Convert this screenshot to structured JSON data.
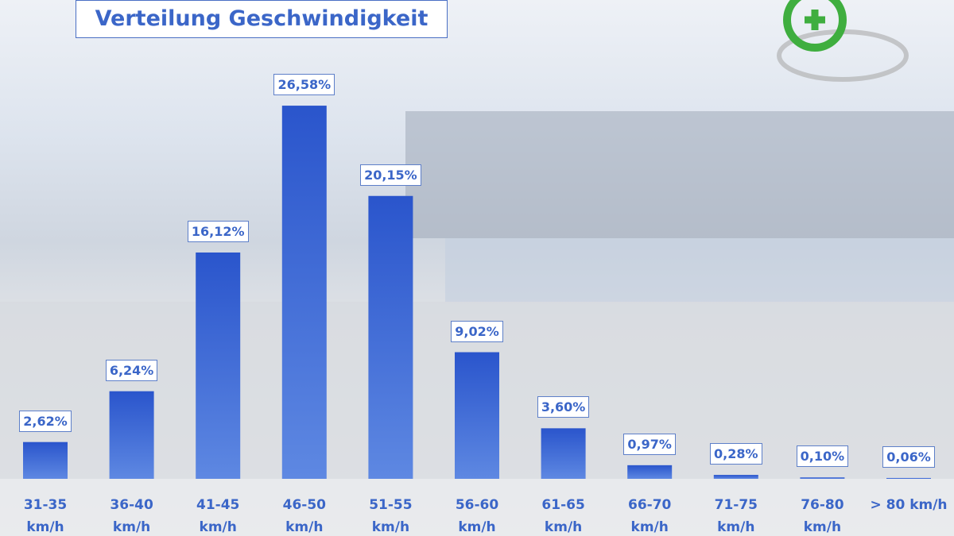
{
  "chart_data": {
    "type": "bar",
    "title": "Verteilung Geschwindigkeit",
    "categories": [
      "31-35 km/h",
      "36-40 km/h",
      "41-45 km/h",
      "46-50 km/h",
      "51-55 km/h",
      "56-60 km/h",
      "61-65 km/h",
      "66-70 km/h",
      "71-75 km/h",
      "76-80 km/h",
      "> 80 km/h"
    ],
    "values": [
      2.62,
      6.24,
      16.12,
      26.58,
      20.15,
      9.02,
      3.6,
      0.97,
      0.28,
      0.1,
      0.06
    ],
    "value_labels": [
      "2,62%",
      "6,24%",
      "16,12%",
      "26,58%",
      "20,15%",
      "9,02%",
      "3,60%",
      "0,97%",
      "0,28%",
      "0,10%",
      "0,06%"
    ],
    "color": "#3563d4"
  }
}
